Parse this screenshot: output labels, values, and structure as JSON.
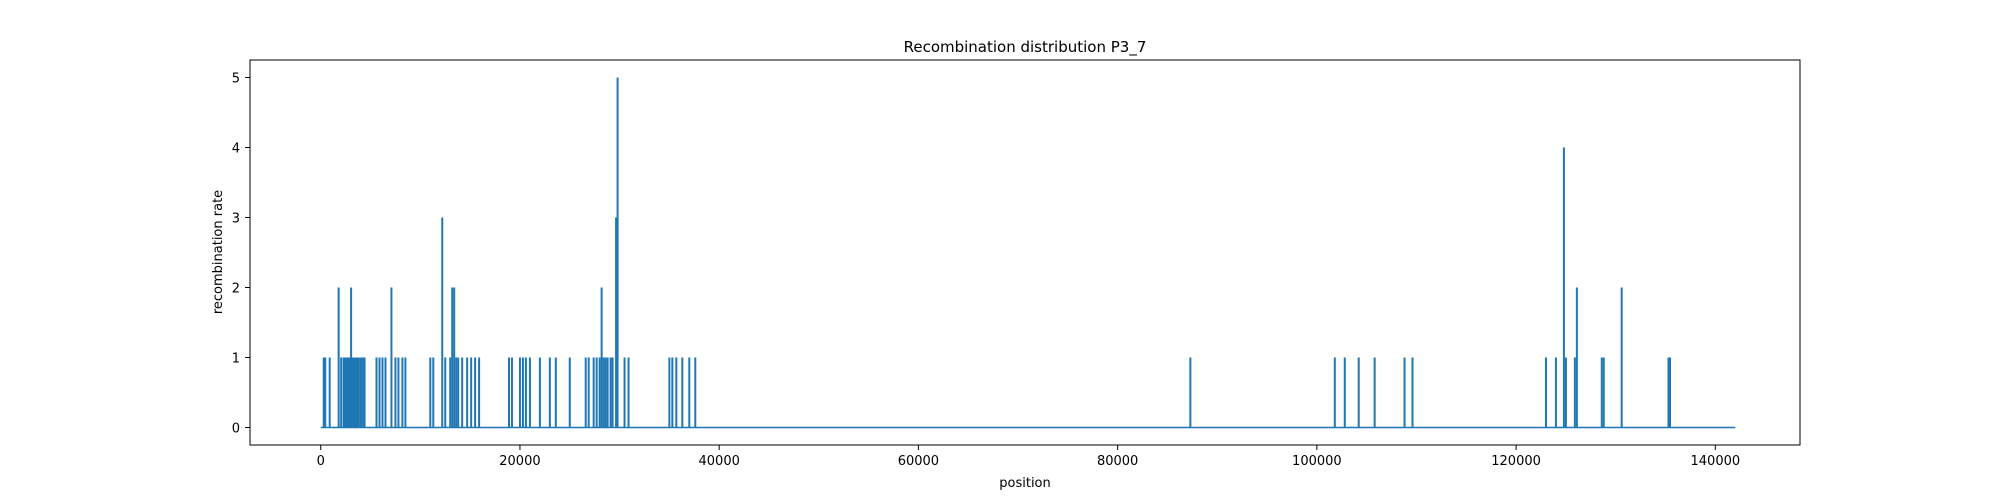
{
  "chart_data": {
    "type": "line",
    "title": "Recombination distribution P3_7",
    "xlabel": "position",
    "ylabel": "recombination rate",
    "xlim": [
      -7100,
      148500
    ],
    "ylim": [
      -0.25,
      5.25
    ],
    "xticks": [
      0,
      20000,
      40000,
      60000,
      80000,
      100000,
      120000,
      140000
    ],
    "xtick_labels": [
      "0",
      "20000",
      "40000",
      "60000",
      "80000",
      "100000",
      "120000",
      "140000"
    ],
    "yticks": [
      0,
      1,
      2,
      3,
      4,
      5
    ],
    "ytick_labels": [
      "0",
      "1",
      "2",
      "3",
      "4",
      "5"
    ],
    "grid": false,
    "legend": "none",
    "x_extent": [
      0,
      142000
    ],
    "color": "#1f77b4",
    "spikes": [
      [
        300,
        1
      ],
      [
        450,
        1
      ],
      [
        900,
        1
      ],
      [
        1800,
        2
      ],
      [
        2050,
        1
      ],
      [
        2300,
        1
      ],
      [
        2450,
        1
      ],
      [
        2600,
        1
      ],
      [
        2750,
        1
      ],
      [
        2900,
        1
      ],
      [
        3050,
        2
      ],
      [
        3200,
        1
      ],
      [
        3350,
        1
      ],
      [
        3500,
        1
      ],
      [
        3650,
        1
      ],
      [
        3800,
        1
      ],
      [
        4000,
        1
      ],
      [
        4200,
        1
      ],
      [
        4400,
        1
      ],
      [
        5600,
        1
      ],
      [
        5900,
        1
      ],
      [
        6200,
        1
      ],
      [
        6500,
        1
      ],
      [
        7100,
        2
      ],
      [
        7500,
        1
      ],
      [
        7800,
        1
      ],
      [
        8200,
        1
      ],
      [
        8500,
        1
      ],
      [
        11000,
        1
      ],
      [
        11300,
        1
      ],
      [
        12200,
        3
      ],
      [
        12500,
        1
      ],
      [
        13000,
        1
      ],
      [
        13200,
        2
      ],
      [
        13400,
        2
      ],
      [
        13600,
        1
      ],
      [
        13800,
        1
      ],
      [
        14200,
        1
      ],
      [
        14700,
        1
      ],
      [
        15100,
        1
      ],
      [
        15500,
        1
      ],
      [
        15900,
        1
      ],
      [
        18900,
        1
      ],
      [
        19200,
        1
      ],
      [
        20000,
        1
      ],
      [
        20300,
        1
      ],
      [
        20600,
        1
      ],
      [
        21000,
        1
      ],
      [
        22000,
        1
      ],
      [
        23000,
        1
      ],
      [
        23600,
        1
      ],
      [
        25000,
        1
      ],
      [
        26600,
        1
      ],
      [
        26900,
        1
      ],
      [
        27400,
        1
      ],
      [
        27700,
        1
      ],
      [
        28000,
        1
      ],
      [
        28200,
        2
      ],
      [
        28400,
        1
      ],
      [
        28600,
        1
      ],
      [
        28800,
        1
      ],
      [
        29100,
        1
      ],
      [
        29300,
        1
      ],
      [
        29650,
        3
      ],
      [
        29800,
        5
      ],
      [
        30500,
        1
      ],
      [
        30900,
        1
      ],
      [
        35000,
        1
      ],
      [
        35300,
        1
      ],
      [
        35700,
        1
      ],
      [
        36300,
        1
      ],
      [
        37000,
        1
      ],
      [
        37600,
        1
      ],
      [
        87300,
        1
      ],
      [
        101800,
        1
      ],
      [
        102800,
        1
      ],
      [
        104200,
        1
      ],
      [
        105800,
        1
      ],
      [
        108800,
        1
      ],
      [
        109600,
        1
      ],
      [
        123000,
        1
      ],
      [
        124000,
        1
      ],
      [
        124800,
        4
      ],
      [
        125000,
        1
      ],
      [
        125900,
        1
      ],
      [
        126100,
        2
      ],
      [
        128600,
        1
      ],
      [
        128800,
        1
      ],
      [
        130600,
        2
      ],
      [
        135300,
        1
      ],
      [
        135450,
        1
      ]
    ]
  }
}
